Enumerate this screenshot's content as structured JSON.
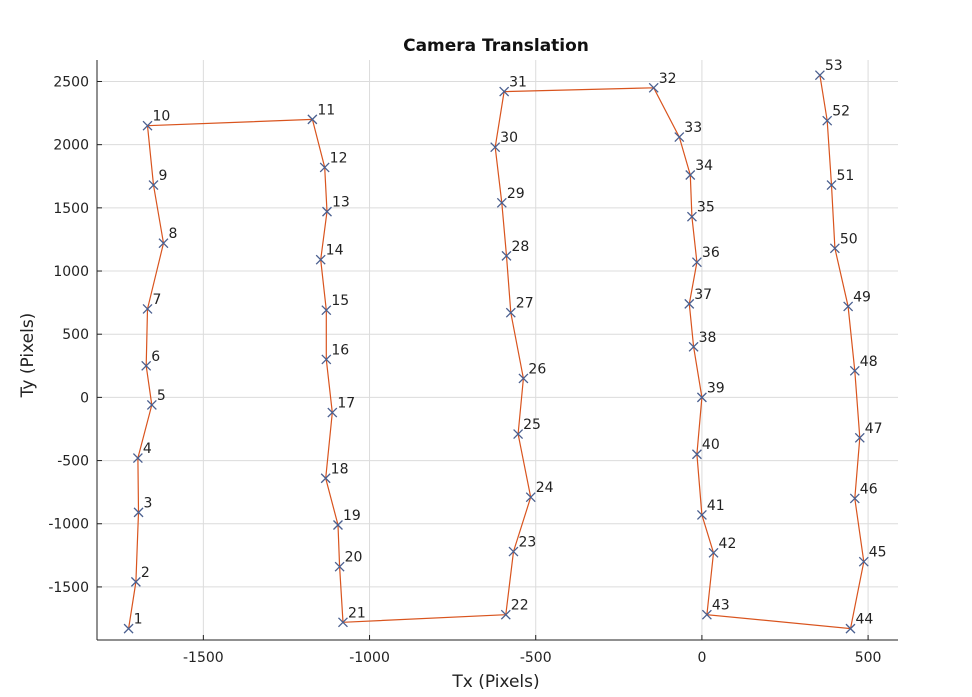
{
  "chart_data": {
    "type": "line",
    "title": "Camera Translation",
    "xlabel": "Tx (Pixels)",
    "ylabel": "Ty (Pixels)",
    "xlim": [
      -1820,
      590
    ],
    "ylim": [
      -1920,
      2670
    ],
    "xticks": [
      -1500,
      -1000,
      -500,
      0,
      500
    ],
    "xtick_labels": [
      "-1500",
      "-1000",
      "-500",
      "0",
      "500"
    ],
    "yticks": [
      -1500,
      -1000,
      -500,
      0,
      500,
      1000,
      1500,
      2000,
      2500
    ],
    "ytick_labels": [
      "-1500",
      "-1000",
      "-500",
      "0",
      "500",
      "1000",
      "1500",
      "2000",
      "2500"
    ],
    "grid": true,
    "line_color": "#d9541e",
    "marker": "x",
    "marker_color": "#4a5f8f",
    "points": [
      {
        "label": "1",
        "x": -1725,
        "y": -1830
      },
      {
        "label": "2",
        "x": -1703,
        "y": -1460
      },
      {
        "label": "3",
        "x": -1695,
        "y": -910
      },
      {
        "label": "4",
        "x": -1697,
        "y": -480
      },
      {
        "label": "5",
        "x": -1655,
        "y": -60
      },
      {
        "label": "6",
        "x": -1672,
        "y": 250
      },
      {
        "label": "7",
        "x": -1668,
        "y": 700
      },
      {
        "label": "8",
        "x": -1620,
        "y": 1220
      },
      {
        "label": "9",
        "x": -1650,
        "y": 1680
      },
      {
        "label": "10",
        "x": -1668,
        "y": 2150
      },
      {
        "label": "11",
        "x": -1172,
        "y": 2200
      },
      {
        "label": "12",
        "x": -1135,
        "y": 1820
      },
      {
        "label": "13",
        "x": -1128,
        "y": 1470
      },
      {
        "label": "14",
        "x": -1147,
        "y": 1090
      },
      {
        "label": "15",
        "x": -1130,
        "y": 690
      },
      {
        "label": "16",
        "x": -1130,
        "y": 300
      },
      {
        "label": "17",
        "x": -1112,
        "y": -120
      },
      {
        "label": "18",
        "x": -1132,
        "y": -640
      },
      {
        "label": "19",
        "x": -1095,
        "y": -1010
      },
      {
        "label": "20",
        "x": -1090,
        "y": -1340
      },
      {
        "label": "21",
        "x": -1080,
        "y": -1780
      },
      {
        "label": "22",
        "x": -590,
        "y": -1720
      },
      {
        "label": "23",
        "x": -567,
        "y": -1220
      },
      {
        "label": "24",
        "x": -515,
        "y": -790
      },
      {
        "label": "25",
        "x": -553,
        "y": -290
      },
      {
        "label": "26",
        "x": -537,
        "y": 150
      },
      {
        "label": "27",
        "x": -575,
        "y": 670
      },
      {
        "label": "28",
        "x": -588,
        "y": 1120
      },
      {
        "label": "29",
        "x": -602,
        "y": 1540
      },
      {
        "label": "30",
        "x": -622,
        "y": 1980
      },
      {
        "label": "31",
        "x": -595,
        "y": 2420
      },
      {
        "label": "32",
        "x": -145,
        "y": 2450
      },
      {
        "label": "33",
        "x": -68,
        "y": 2060
      },
      {
        "label": "34",
        "x": -35,
        "y": 1760
      },
      {
        "label": "35",
        "x": -30,
        "y": 1430
      },
      {
        "label": "36",
        "x": -15,
        "y": 1070
      },
      {
        "label": "37",
        "x": -38,
        "y": 740
      },
      {
        "label": "38",
        "x": -25,
        "y": 400
      },
      {
        "label": "39",
        "x": 0,
        "y": 0
      },
      {
        "label": "40",
        "x": -15,
        "y": -450
      },
      {
        "label": "41",
        "x": 0,
        "y": -930
      },
      {
        "label": "42",
        "x": 35,
        "y": -1230
      },
      {
        "label": "43",
        "x": 15,
        "y": -1720
      },
      {
        "label": "44",
        "x": 447,
        "y": -1830
      },
      {
        "label": "45",
        "x": 487,
        "y": -1300
      },
      {
        "label": "46",
        "x": 460,
        "y": -800
      },
      {
        "label": "47",
        "x": 475,
        "y": -320
      },
      {
        "label": "48",
        "x": 460,
        "y": 210
      },
      {
        "label": "49",
        "x": 440,
        "y": 720
      },
      {
        "label": "50",
        "x": 400,
        "y": 1180
      },
      {
        "label": "51",
        "x": 390,
        "y": 1680
      },
      {
        "label": "52",
        "x": 377,
        "y": 2190
      },
      {
        "label": "53",
        "x": 355,
        "y": 2550
      }
    ]
  }
}
